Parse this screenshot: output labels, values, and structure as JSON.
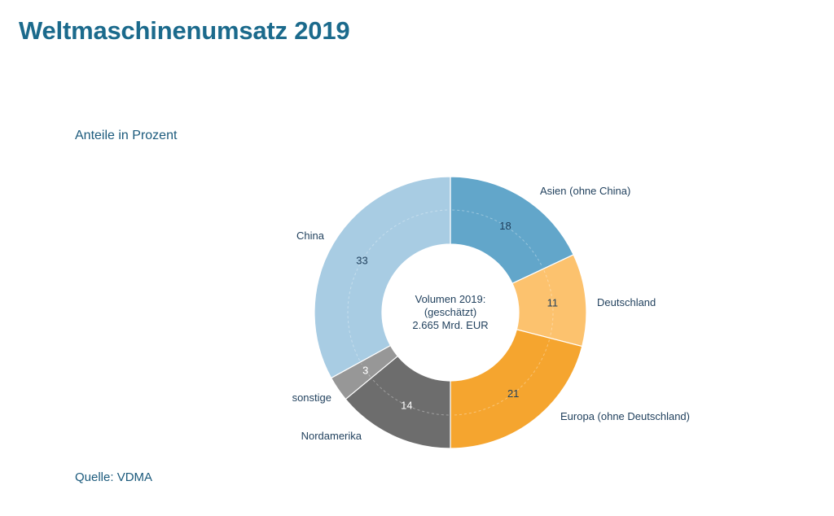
{
  "page": {
    "title": "Weltmaschinenumsatz 2019",
    "subtitle": "Anteile in Prozent",
    "source": "Quelle: VDMA"
  },
  "chart_data": {
    "type": "pie",
    "title": "Weltmaschinenumsatz 2019",
    "subtitle": "Anteile in Prozent",
    "unit": "%",
    "center_text": [
      "Volumen 2019:",
      "(geschätzt)",
      "2.665 Mrd. EUR"
    ],
    "slices": [
      {
        "label": "Asien (ohne China)",
        "value": 18,
        "color": "#62a6ca",
        "value_color": "#1f3f5c"
      },
      {
        "label": "Deutschland",
        "value": 11,
        "color": "#fcc26e",
        "value_color": "#1f3f5c"
      },
      {
        "label": "Europa (ohne Deutschland)",
        "value": 21,
        "color": "#f5a52f",
        "value_color": "#1f3f5c"
      },
      {
        "label": "Nordamerika",
        "value": 14,
        "color": "#6d6d6d",
        "value_color": "#ffffff"
      },
      {
        "label": "sonstige",
        "value": 3,
        "color": "#979797",
        "value_color": "#ffffff"
      },
      {
        "label": "China",
        "value": 33,
        "color": "#a8cce3",
        "value_color": "#1f3f5c"
      }
    ],
    "start_angle_deg": 0,
    "direction": "clockwise"
  }
}
